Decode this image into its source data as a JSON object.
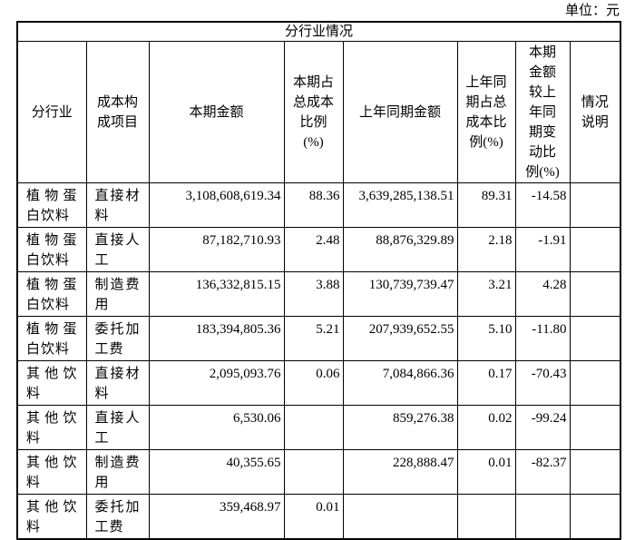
{
  "unit_label": "单位：元",
  "table": {
    "title": "分行业情况",
    "headers": [
      "分行业",
      "成本构成项目",
      "本期金额",
      "本期占总成本比例(%)",
      "上年同期金额",
      "上年同期占总成本比例(%)",
      "本期金额较上年同期变动比例(%)",
      "情况说明"
    ],
    "column_names": [
      "industry-cell",
      "cost-item-cell",
      "current-amount-cell",
      "current-pct-cell",
      "prior-amount-cell",
      "prior-pct-cell",
      "change-pct-cell",
      "note-cell"
    ],
    "rows": [
      [
        "植物蛋白饮料",
        "直接材料",
        "3,108,608,619.34",
        "88.36",
        "3,639,285,138.51",
        "89.31",
        "-14.58",
        ""
      ],
      [
        "植物蛋白饮料",
        "直接人工",
        "87,182,710.93",
        "2.48",
        "88,876,329.89",
        "2.18",
        "-1.91",
        ""
      ],
      [
        "植物蛋白饮料",
        "制造费用",
        "136,332,815.15",
        "3.88",
        "130,739,739.47",
        "3.21",
        "4.28",
        ""
      ],
      [
        "植物蛋白饮料",
        "委托加工费",
        "183,394,805.36",
        "5.21",
        "207,939,652.55",
        "5.10",
        "-11.80",
        ""
      ],
      [
        "其他饮料",
        "直接材料",
        "2,095,093.76",
        "0.06",
        "7,084,866.36",
        "0.17",
        "-70.43",
        ""
      ],
      [
        "其他饮料",
        "直接人工",
        "6,530.06",
        "",
        "859,276.38",
        "0.02",
        "-99.24",
        ""
      ],
      [
        "其他饮料",
        "制造费用",
        "40,355.65",
        "",
        "228,888.47",
        "0.01",
        "-82.37",
        ""
      ],
      [
        "其他饮料",
        "委托加工费",
        "359,468.97",
        "0.01",
        "",
        "",
        "",
        ""
      ]
    ]
  }
}
